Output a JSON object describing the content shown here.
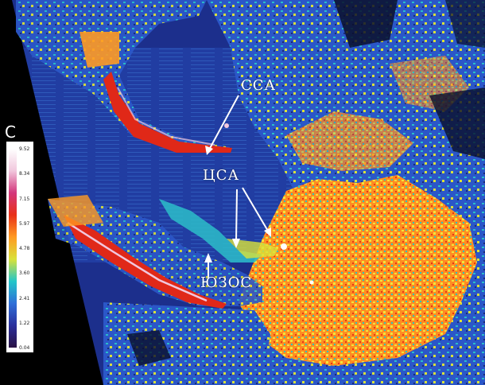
{
  "annotations": {
    "cca": "ССА",
    "csa": "ЦСА",
    "yuzos": "ЮЗОС"
  },
  "legend": {
    "title": "С",
    "ticks": [
      "9.52",
      "8.34",
      "7.15",
      "5.97",
      "4.78",
      "3.60",
      "2.41",
      "1.22",
      "0.04"
    ],
    "colors": [
      "#2a1244",
      "#2a2f9c",
      "#2f6fd8",
      "#22c6c9",
      "#d9e23a",
      "#ff9a22",
      "#e83018",
      "#d3377c",
      "#f1c7dd",
      "#ffffff"
    ]
  },
  "colors": {
    "water": "#1c2f8c",
    "land_hot": "#f3e43a",
    "land_warm": "#ff8c22",
    "coast_hot": "#e02818",
    "cool": "#2bbdc9"
  }
}
